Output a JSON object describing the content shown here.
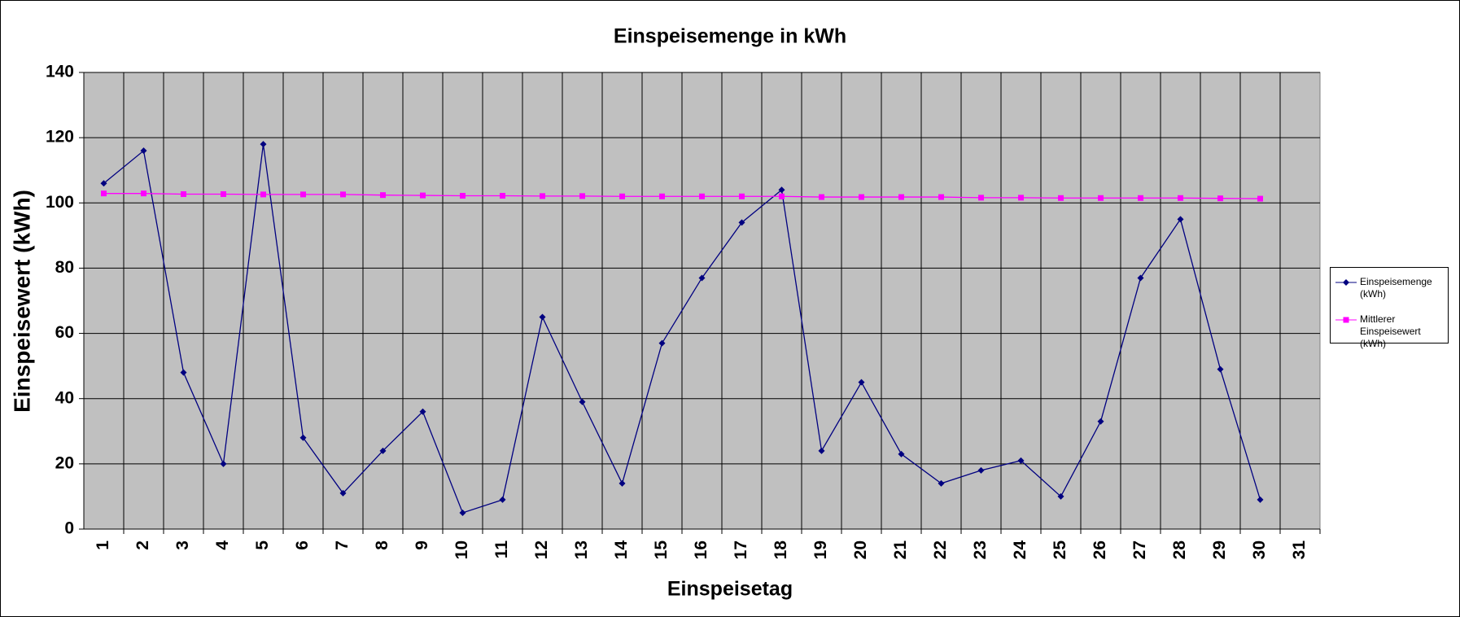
{
  "chart_data": {
    "type": "line",
    "title": "Einspeisemenge in kWh",
    "x_label": "Einspeisetag",
    "y_label": "Einspeisewert  (kWh)",
    "categories": [
      "1",
      "2",
      "3",
      "4",
      "5",
      "6",
      "7",
      "8",
      "9",
      "10",
      "11",
      "12",
      "13",
      "14",
      "15",
      "16",
      "17",
      "18",
      "19",
      "20",
      "21",
      "22",
      "23",
      "24",
      "25",
      "26",
      "27",
      "28",
      "29",
      "30",
      "31"
    ],
    "series": [
      {
        "name": "Einspeisemenge (kWh)",
        "color": "#000080",
        "marker": "diamond",
        "values": [
          106,
          116,
          48,
          20,
          118,
          28,
          11,
          24,
          36,
          5,
          9,
          65,
          39,
          14,
          57,
          77,
          94,
          104,
          24,
          45,
          23,
          14,
          18,
          21,
          10,
          33,
          77,
          95,
          49,
          9,
          null
        ]
      },
      {
        "name": "Mittlerer Einspeisewert (kWh)",
        "color": "#ff00ff",
        "marker": "square",
        "values": [
          102.9,
          102.9,
          102.7,
          102.7,
          102.6,
          102.6,
          102.6,
          102.4,
          102.3,
          102.2,
          102.2,
          102.1,
          102.1,
          102.0,
          102.0,
          102.0,
          102.0,
          102.0,
          101.8,
          101.8,
          101.8,
          101.8,
          101.6,
          101.6,
          101.5,
          101.5,
          101.5,
          101.5,
          101.4,
          101.3,
          null
        ]
      }
    ],
    "ylim": [
      0,
      140
    ],
    "yticks": [
      0,
      20,
      40,
      60,
      80,
      100,
      120,
      140
    ],
    "grid": true,
    "plot_background": "#c0c0c0",
    "legend": "right"
  }
}
